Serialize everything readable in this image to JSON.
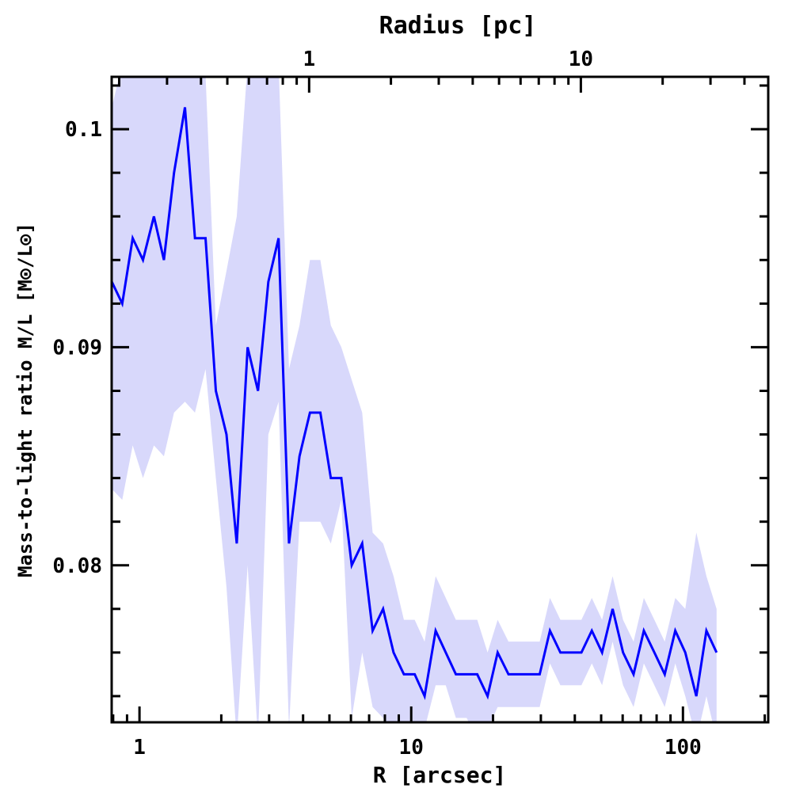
{
  "chart_data": {
    "type": "line",
    "title": "",
    "xlabel": "R [arcsec]",
    "ylabel": "Mass-to-light ratio M/L [M⊙/L⊙]",
    "top_xlabel": "Radius [pc]",
    "xscale": "log",
    "xlim": [
      0.79,
      206
    ],
    "ylim": [
      0.0728,
      0.1024
    ],
    "x_ticks": [
      1,
      10,
      100
    ],
    "x_tick_labels": [
      "1",
      "10",
      "100"
    ],
    "y_ticks": [
      0.08,
      0.09,
      0.1
    ],
    "y_tick_labels": [
      "0.08",
      "0.09",
      "0.1"
    ],
    "top_ticks_pc": [
      1,
      10
    ],
    "top_tick_labels": [
      "1",
      "10"
    ],
    "arcsec_per_pc": 4.21,
    "grid": false,
    "line_color": "#0000ff",
    "band_color": "#d8d8fb",
    "x": [
      0.791,
      0.864,
      0.944,
      1.03,
      1.13,
      1.23,
      1.34,
      1.47,
      1.6,
      1.75,
      1.91,
      2.09,
      2.28,
      2.5,
      2.73,
      2.98,
      3.25,
      3.55,
      3.88,
      4.24,
      4.63,
      5.06,
      5.53,
      6.04,
      6.6,
      7.21,
      7.88,
      8.61,
      9.4,
      10.3,
      11.2,
      12.3,
      13.4,
      14.6,
      16.0,
      17.5,
      19.1,
      20.8,
      22.8,
      24.9,
      27.2,
      29.7,
      32.4,
      35.4,
      38.7,
      42.3,
      46.2,
      50.4,
      55.1,
      60.2,
      65.8,
      71.8,
      78.5,
      85.7,
      93.7,
      102,
      112,
      122,
      133
    ],
    "series": [
      {
        "name": "M/L",
        "values": [
          0.093,
          0.092,
          0.095,
          0.094,
          0.096,
          0.094,
          0.098,
          0.101,
          0.095,
          0.095,
          0.088,
          0.086,
          0.081,
          0.09,
          0.088,
          0.093,
          0.095,
          0.081,
          0.085,
          0.087,
          0.087,
          0.084,
          0.084,
          0.08,
          0.081,
          0.077,
          0.078,
          0.076,
          0.075,
          0.075,
          0.074,
          0.077,
          0.076,
          0.075,
          0.075,
          0.075,
          0.074,
          0.076,
          0.075,
          0.075,
          0.075,
          0.075,
          0.077,
          0.076,
          0.076,
          0.076,
          0.077,
          0.076,
          0.078,
          0.076,
          0.075,
          0.077,
          0.076,
          0.075,
          0.077,
          0.076,
          0.074,
          0.077,
          0.076
        ],
        "upper": [
          0.101,
          0.103,
          0.103,
          0.103,
          0.103,
          0.103,
          0.103,
          0.103,
          0.1025,
          0.1025,
          0.091,
          0.0935,
          0.096,
          0.103,
          0.103,
          0.103,
          0.103,
          0.089,
          0.091,
          0.094,
          0.094,
          0.091,
          0.09,
          0.0885,
          0.087,
          0.0815,
          0.081,
          0.0795,
          0.0775,
          0.0775,
          0.0765,
          0.0795,
          0.0785,
          0.0775,
          0.0775,
          0.0775,
          0.076,
          0.0775,
          0.0765,
          0.0765,
          0.0765,
          0.0765,
          0.0785,
          0.0775,
          0.0775,
          0.0775,
          0.0785,
          0.0775,
          0.0795,
          0.0775,
          0.0765,
          0.0785,
          0.0775,
          0.0765,
          0.0785,
          0.078,
          0.0815,
          0.0795,
          0.078
        ],
        "lower": [
          0.0835,
          0.083,
          0.0855,
          0.084,
          0.0855,
          0.085,
          0.087,
          0.0875,
          0.087,
          0.089,
          0.084,
          0.079,
          0.072,
          0.08,
          0.072,
          0.086,
          0.0875,
          0.0725,
          0.082,
          0.082,
          0.082,
          0.081,
          0.083,
          0.073,
          0.076,
          0.0735,
          0.073,
          0.072,
          0.072,
          0.0725,
          0.0725,
          0.0745,
          0.0745,
          0.073,
          0.073,
          0.072,
          0.0725,
          0.0735,
          0.0735,
          0.0735,
          0.0735,
          0.0735,
          0.0755,
          0.0745,
          0.0745,
          0.0745,
          0.0755,
          0.0745,
          0.0765,
          0.0745,
          0.0735,
          0.0755,
          0.0745,
          0.0735,
          0.0755,
          0.074,
          0.072,
          0.074,
          0.072
        ]
      }
    ]
  }
}
